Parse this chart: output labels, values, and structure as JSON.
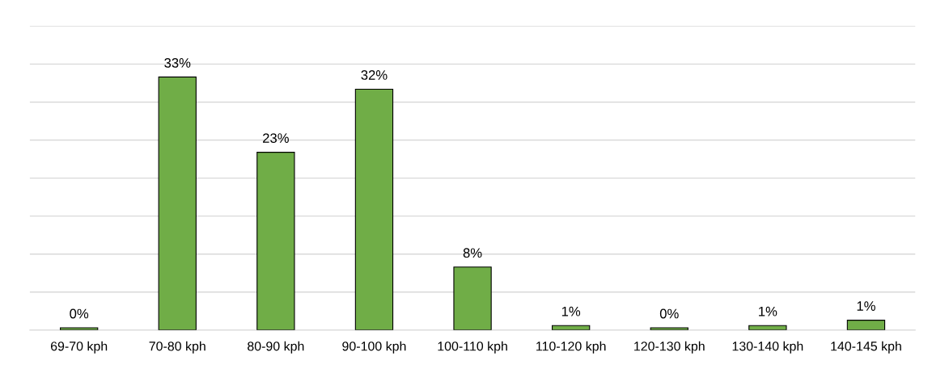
{
  "chart_data": {
    "type": "bar",
    "categories": [
      "69-70 kph",
      "70-80 kph",
      "80-90 kph",
      "90-100 kph",
      "100-110 kph",
      "110-120 kph",
      "120-130 kph",
      "130-140 kph",
      "140-145 kph"
    ],
    "values": [
      0.3,
      33.3,
      23.4,
      31.7,
      8.3,
      0.6,
      0.3,
      0.6,
      1.3
    ],
    "value_labels": [
      "0%",
      "33%",
      "23%",
      "32%",
      "8%",
      "1%",
      "0%",
      "1%",
      "1%"
    ],
    "color": "#70ad47",
    "ylim": [
      0,
      40
    ],
    "yticks": [
      {
        "value": 0,
        "label": null
      },
      {
        "value": 5,
        "label": null
      },
      {
        "value": 10,
        "label": null
      },
      {
        "value": 15,
        "label": null
      },
      {
        "value": 20,
        "label": null
      },
      {
        "value": 25,
        "label": null
      },
      {
        "value": 30,
        "label": null
      },
      {
        "value": 35,
        "label": null
      },
      {
        "value": 40,
        "label": null
      }
    ],
    "tick_labels": "x",
    "grid": "y"
  }
}
